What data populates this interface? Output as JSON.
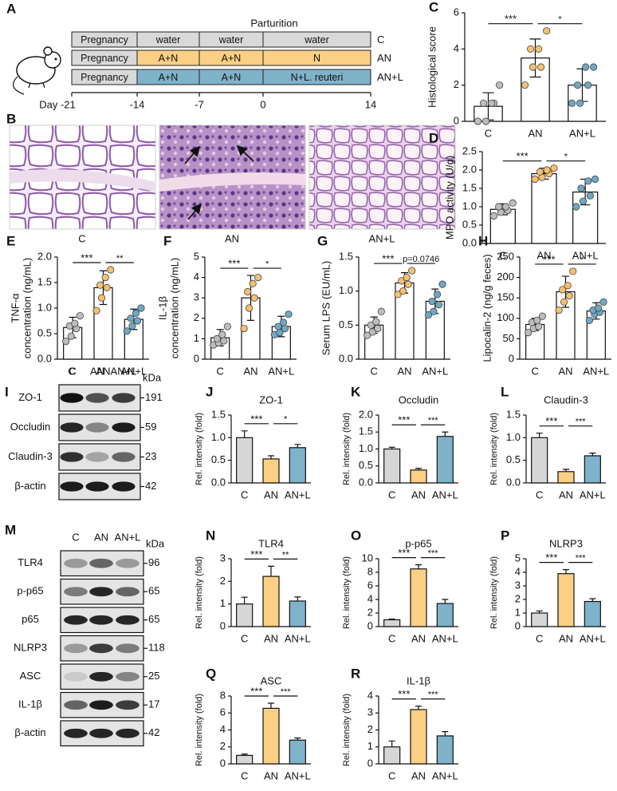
{
  "panel_a": {
    "letter": "A",
    "event": "Parturition",
    "rows": [
      {
        "cells": [
          "Pregnancy",
          "water",
          "water",
          "water"
        ],
        "group": "C",
        "color": "#d9d9d9"
      },
      {
        "cells": [
          "Pregnancy",
          "A+N",
          "A+N",
          "N"
        ],
        "group": "AN",
        "color": "#fbcf84"
      },
      {
        "cells": [
          "Pregnancy",
          "A+N",
          "A+N",
          "N+L. reuteri"
        ],
        "group": "AN+L",
        "color": "#7eb3ca"
      }
    ],
    "timeline": [
      "Day -21",
      "-14",
      "-7",
      "0",
      "14"
    ]
  },
  "panel_b": {
    "letter": "B",
    "images": [
      "C",
      "AN",
      "AN+L"
    ]
  },
  "panel_i": {
    "letter": "I",
    "lanes": [
      "C",
      "AN",
      "AN+L"
    ],
    "unit": "kDa",
    "proteins": [
      {
        "name": "ZO-1",
        "kda": 191
      },
      {
        "name": "Occludin",
        "kda": 59
      },
      {
        "name": "Claudin-3",
        "kda": 23
      },
      {
        "name": "β-actin",
        "kda": 42
      }
    ]
  },
  "panel_m": {
    "letter": "M",
    "lanes": [
      "C",
      "AN",
      "AN+L"
    ],
    "unit": "kDa",
    "proteins": [
      {
        "name": "TLR4",
        "kda": 96
      },
      {
        "name": "p-p65",
        "kda": 65
      },
      {
        "name": "p65",
        "kda": 65
      },
      {
        "name": "NLRP3",
        "kda": 118
      },
      {
        "name": "ASC",
        "kda": 25
      },
      {
        "name": "IL-1β",
        "kda": 17
      },
      {
        "name": "β-actin",
        "kda": 42
      }
    ]
  },
  "chart_data": [
    {
      "panel": "C",
      "type": "bar",
      "hollow": true,
      "ylabel": "Histological score",
      "categories": [
        "C",
        "AN",
        "AN+L"
      ],
      "values": [
        0.83,
        3.5,
        2.0
      ],
      "errors": [
        0.75,
        1.05,
        0.9
      ],
      "points": [
        [
          0,
          0,
          1,
          1,
          1,
          2
        ],
        [
          2,
          3,
          3,
          4,
          4,
          5
        ],
        [
          1,
          1,
          2,
          2,
          3,
          3
        ]
      ],
      "colors": [
        "#bdbdbd",
        "#f5c06f",
        "#6fa8c4"
      ],
      "ylim": [
        0,
        6
      ],
      "yticks": [
        0,
        2,
        4,
        6
      ],
      "significance": [
        "***",
        "*"
      ]
    },
    {
      "panel": "D",
      "type": "bar",
      "hollow": true,
      "ylabel": "MPO activity (U/g)",
      "categories": [
        "C",
        "AN",
        "AN+L"
      ],
      "values": [
        0.93,
        1.9,
        1.4
      ],
      "errors": [
        0.15,
        0.15,
        0.35
      ],
      "points": [
        [
          0.75,
          0.85,
          0.9,
          1.0,
          1.0,
          1.1
        ],
        [
          1.75,
          1.8,
          1.9,
          1.95,
          2.0,
          2.05
        ],
        [
          1.0,
          1.15,
          1.3,
          1.5,
          1.7,
          1.75
        ]
      ],
      "colors": [
        "#bdbdbd",
        "#f5c06f",
        "#6fa8c4"
      ],
      "ylim": [
        0,
        2.5
      ],
      "yticks": [
        {
          "value": 0,
          "label": "0.0"
        },
        0.5,
        {
          "value": 1,
          "label": "1.0"
        },
        1.5,
        {
          "value": 2,
          "label": "2.0"
        },
        2.5
      ],
      "significance": [
        "***",
        "*"
      ]
    },
    {
      "panel": "E",
      "type": "bar",
      "hollow": true,
      "ylabel": [
        "TNF-α",
        "concentration (ng/mL)"
      ],
      "categories": [
        "C",
        "AN",
        "AN+L"
      ],
      "values": [
        0.62,
        1.4,
        0.78
      ],
      "errors": [
        0.2,
        0.33,
        0.2
      ],
      "points": [
        [
          0.35,
          0.45,
          0.6,
          0.65,
          0.7,
          0.85
        ],
        [
          0.95,
          1.2,
          1.4,
          1.45,
          1.6,
          1.75
        ],
        [
          0.55,
          0.65,
          0.75,
          0.8,
          0.9,
          1.0
        ]
      ],
      "colors": [
        "#bdbdbd",
        "#f5c06f",
        "#6fa8c4"
      ],
      "ylim": [
        0,
        2
      ],
      "yticks": [
        {
          "value": 0,
          "label": "0.0"
        },
        0.5,
        {
          "value": 1,
          "label": "1.0"
        },
        1.5,
        {
          "value": 2,
          "label": "2.0"
        }
      ],
      "significance": [
        "***",
        "**"
      ]
    },
    {
      "panel": "F",
      "type": "bar",
      "hollow": true,
      "ylabel": [
        "IL-1β",
        "concentration (ng/mL)"
      ],
      "categories": [
        "C",
        "AN",
        "AN+L"
      ],
      "values": [
        1.05,
        3.0,
        1.6
      ],
      "errors": [
        0.4,
        1.1,
        0.5
      ],
      "points": [
        [
          0.7,
          0.8,
          0.9,
          1.0,
          1.2,
          1.6
        ],
        [
          1.5,
          2.5,
          3.0,
          3.3,
          3.7,
          4.0
        ],
        [
          1.2,
          1.3,
          1.5,
          1.6,
          1.8,
          2.2
        ]
      ],
      "colors": [
        "#bdbdbd",
        "#f5c06f",
        "#6fa8c4"
      ],
      "ylim": [
        0,
        5
      ],
      "yticks": [
        0,
        1,
        2,
        3,
        4,
        5
      ],
      "significance": [
        "***",
        "*"
      ]
    },
    {
      "panel": "G",
      "type": "bar",
      "hollow": true,
      "ylabel": "Serum LPS (EU/mL)",
      "categories": [
        "C",
        "AN",
        "AN+L"
      ],
      "values": [
        0.5,
        1.12,
        0.85
      ],
      "errors": [
        0.12,
        0.15,
        0.18
      ],
      "points": [
        [
          0.35,
          0.4,
          0.45,
          0.5,
          0.55,
          0.7
        ],
        [
          0.95,
          1.0,
          1.1,
          1.15,
          1.2,
          1.3
        ],
        [
          0.65,
          0.7,
          0.8,
          0.85,
          0.95,
          1.1
        ]
      ],
      "colors": [
        "#bdbdbd",
        "#f5c06f",
        "#6fa8c4"
      ],
      "ylim": [
        0,
        1.5
      ],
      "yticks": [
        {
          "value": 0,
          "label": "0.0"
        },
        0.5,
        {
          "value": 1,
          "label": "1.0"
        },
        1.5
      ],
      "significance": [
        "***",
        "p=0.0746"
      ]
    },
    {
      "panel": "H",
      "type": "bar",
      "hollow": true,
      "ylabel": "Lipocalin-2  (ng/g feces)",
      "categories": [
        "C",
        "AN",
        "AN+L"
      ],
      "values": [
        85,
        165,
        118
      ],
      "errors": [
        15,
        38,
        20
      ],
      "points": [
        [
          65,
          75,
          80,
          90,
          95,
          105
        ],
        [
          120,
          140,
          155,
          170,
          180,
          215
        ],
        [
          95,
          110,
          115,
          120,
          125,
          140
        ]
      ],
      "colors": [
        "#bdbdbd",
        "#f5c06f",
        "#6fa8c4"
      ],
      "ylim": [
        0,
        250
      ],
      "yticks": [
        0,
        50,
        100,
        150,
        200,
        250
      ],
      "significance": [
        "***",
        "*"
      ]
    },
    {
      "panel": "J",
      "type": "bar",
      "title": "ZO-1",
      "ylabel": "Rel. intensity (fold)",
      "categories": [
        "C",
        "AN",
        "AN+L"
      ],
      "values": [
        1.0,
        0.53,
        0.78
      ],
      "errors": [
        0.15,
        0.07,
        0.07
      ],
      "colors": [
        "#d6d6d6",
        "#fbcf84",
        "#7eb3ca"
      ],
      "ylim": [
        0,
        1.5
      ],
      "yticks": [
        {
          "value": 0,
          "label": "0.0"
        },
        0.5,
        {
          "value": 1,
          "label": "1.0"
        },
        1.5
      ],
      "significance": [
        "***",
        "*"
      ]
    },
    {
      "panel": "K",
      "type": "bar",
      "title": "Occludin",
      "ylabel": "Rel. intensity (fold)",
      "categories": [
        "C",
        "AN",
        "AN+L"
      ],
      "values": [
        1.0,
        0.38,
        1.37
      ],
      "errors": [
        0.05,
        0.05,
        0.13
      ],
      "colors": [
        "#d6d6d6",
        "#fbcf84",
        "#7eb3ca"
      ],
      "ylim": [
        0,
        2
      ],
      "yticks": [
        {
          "value": 0,
          "label": "0.0"
        },
        0.5,
        {
          "value": 1,
          "label": "1.0"
        },
        1.5,
        {
          "value": 2,
          "label": "2.0"
        }
      ],
      "significance": [
        "***",
        "***"
      ]
    },
    {
      "panel": "L",
      "type": "bar",
      "title": "Claudin-3",
      "ylabel": "Rel. intensity (fold)",
      "categories": [
        "C",
        "AN",
        "AN+L"
      ],
      "values": [
        1.0,
        0.25,
        0.6
      ],
      "errors": [
        0.1,
        0.05,
        0.06
      ],
      "colors": [
        "#d6d6d6",
        "#fbcf84",
        "#7eb3ca"
      ],
      "ylim": [
        0,
        1.5
      ],
      "yticks": [
        {
          "value": 0,
          "label": "0.0"
        },
        0.5,
        {
          "value": 1,
          "label": "1.0"
        },
        1.5
      ],
      "significance": [
        "***",
        "***"
      ]
    },
    {
      "panel": "N",
      "type": "bar",
      "title": "TLR4",
      "ylabel": "Rel. intensity (fold)",
      "categories": [
        "C",
        "AN",
        "AN+L"
      ],
      "values": [
        1.0,
        2.22,
        1.13
      ],
      "errors": [
        0.3,
        0.45,
        0.18
      ],
      "colors": [
        "#d6d6d6",
        "#fbcf84",
        "#7eb3ca"
      ],
      "ylim": [
        0,
        3
      ],
      "yticks": [
        0,
        1,
        2,
        3
      ],
      "significance": [
        "***",
        "**"
      ]
    },
    {
      "panel": "O",
      "type": "bar",
      "title": "p-p65",
      "ylabel": "Rel. intensity (fold)",
      "categories": [
        "C",
        "AN",
        "AN+L"
      ],
      "values": [
        1.0,
        8.5,
        3.4
      ],
      "errors": [
        0.1,
        0.6,
        0.6
      ],
      "colors": [
        "#d6d6d6",
        "#fbcf84",
        "#7eb3ca"
      ],
      "ylim": [
        0,
        10
      ],
      "yticks": [
        0,
        2,
        4,
        6,
        8,
        10
      ],
      "significance": [
        "***",
        "***"
      ]
    },
    {
      "panel": "P",
      "type": "bar",
      "title": "NLRP3",
      "ylabel": "Rel. intensity (fold)",
      "categories": [
        "C",
        "AN",
        "AN+L"
      ],
      "values": [
        1.0,
        3.9,
        1.85
      ],
      "errors": [
        0.15,
        0.3,
        0.2
      ],
      "colors": [
        "#d6d6d6",
        "#fbcf84",
        "#7eb3ca"
      ],
      "ylim": [
        0,
        5
      ],
      "yticks": [
        0,
        1,
        2,
        3,
        4,
        5
      ],
      "significance": [
        "***",
        "***"
      ]
    },
    {
      "panel": "Q",
      "type": "bar",
      "title": "ASC",
      "ylabel": "Rel. intensity (fold)",
      "categories": [
        "C",
        "AN",
        "AN+L"
      ],
      "values": [
        1.0,
        6.55,
        2.8
      ],
      "errors": [
        0.15,
        0.6,
        0.25
      ],
      "colors": [
        "#d6d6d6",
        "#fbcf84",
        "#7eb3ca"
      ],
      "ylim": [
        0,
        8
      ],
      "yticks": [
        0,
        2,
        4,
        6,
        8
      ],
      "significance": [
        "***",
        "***"
      ]
    },
    {
      "panel": "R",
      "type": "bar",
      "title": "IL-1β",
      "ylabel": "Rel. intensity (fold)",
      "categories": [
        "C",
        "AN",
        "AN+L"
      ],
      "values": [
        1.0,
        3.2,
        1.65
      ],
      "errors": [
        0.35,
        0.2,
        0.25
      ],
      "colors": [
        "#d6d6d6",
        "#fbcf84",
        "#7eb3ca"
      ],
      "ylim": [
        0,
        4
      ],
      "yticks": [
        0,
        1,
        2,
        3,
        4
      ],
      "significance": [
        "***",
        "***"
      ]
    }
  ]
}
